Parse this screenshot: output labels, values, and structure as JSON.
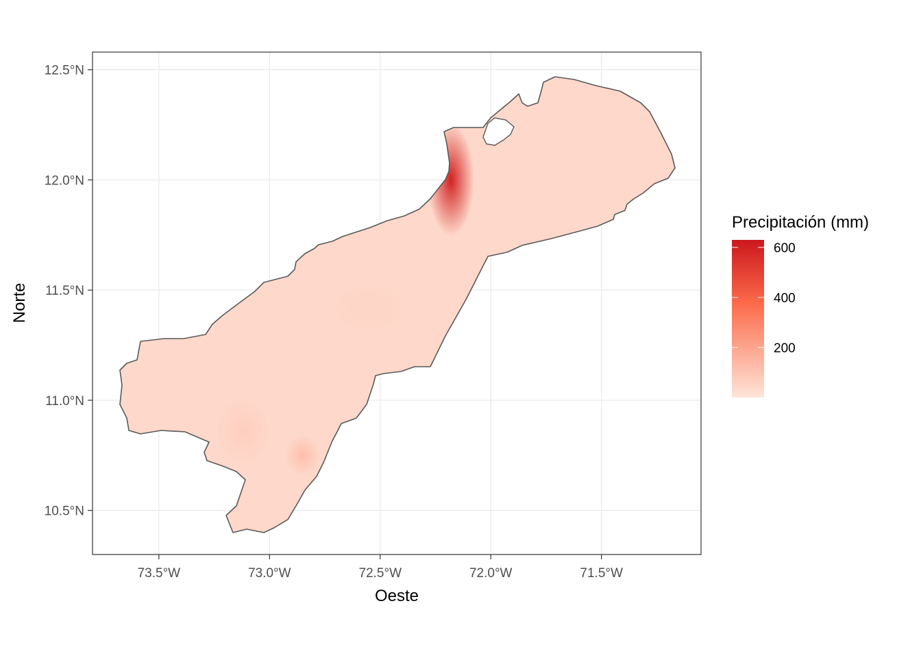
{
  "chart_data": {
    "type": "heatmap",
    "subtype": "choropleth-map-raster",
    "region": "La Guajira",
    "xlabel": "Oeste",
    "ylabel": "Norte",
    "x_ticks": [
      "73.5°W",
      "73.0°W",
      "72.5°W",
      "72.0°W",
      "71.5°W"
    ],
    "x_tick_values": [
      -73.5,
      -73.0,
      -72.5,
      -72.0,
      -71.5
    ],
    "y_ticks": [
      "12.5°N",
      "12.0°N",
      "11.5°N",
      "11.0°N",
      "10.5°N"
    ],
    "y_tick_values": [
      12.5,
      12.0,
      11.5,
      11.0,
      10.5
    ],
    "xlim": [
      -73.8,
      -71.05
    ],
    "ylim": [
      10.3,
      12.58
    ],
    "grid": true,
    "legend": {
      "title": "Precipitación (mm)",
      "placement": "right",
      "labels": [
        "600",
        "400",
        "200"
      ],
      "values": [
        600,
        400,
        200
      ],
      "range": [
        0,
        630
      ],
      "color_low": "#fee5d9",
      "color_high": "#cb181d"
    },
    "hotspots": [
      {
        "lon": -72.18,
        "lat": 12.0,
        "value": 600
      },
      {
        "lon": -72.85,
        "lat": 10.75,
        "value": 120
      },
      {
        "lon": -73.12,
        "lat": 10.86,
        "value": 70
      },
      {
        "lon": -72.55,
        "lat": 11.42,
        "value": 50
      }
    ],
    "base_value": 40,
    "outline_color": "#595959",
    "grid_color": "#ebebeb",
    "panel_border_color": "#333333"
  }
}
